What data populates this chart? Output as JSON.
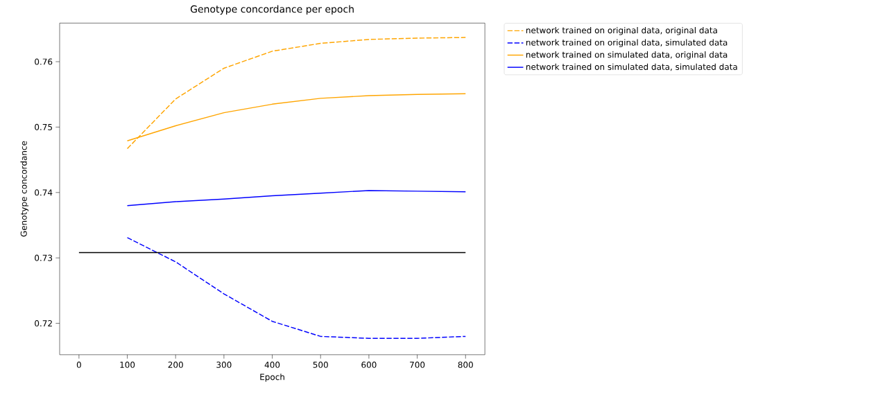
{
  "chart_data": {
    "type": "line",
    "title": "Genotype concordance per epoch",
    "xlabel": "Epoch",
    "ylabel": "Genotype concordance",
    "x": [
      100,
      200,
      300,
      400,
      500,
      600,
      700,
      800
    ],
    "series": [
      {
        "name": "network trained on original data, original data",
        "color": "#ffa500",
        "line_style": "dashed",
        "values": [
          0.7467,
          0.7543,
          0.759,
          0.7616,
          0.7628,
          0.7634,
          0.7636,
          0.7637
        ]
      },
      {
        "name": "network trained on original data, simulated data",
        "color": "#0000ff",
        "line_style": "dashed",
        "values": [
          0.7331,
          0.7294,
          0.7245,
          0.7203,
          0.718,
          0.7177,
          0.7177,
          0.718
        ]
      },
      {
        "name": "network trained on simulated data, original data",
        "color": "#ffa500",
        "line_style": "solid",
        "values": [
          0.7479,
          0.7502,
          0.7522,
          0.7535,
          0.7544,
          0.7548,
          0.755,
          0.7551
        ]
      },
      {
        "name": "network trained on simulated data, simulated data",
        "color": "#0000ff",
        "line_style": "solid",
        "values": [
          0.738,
          0.7386,
          0.739,
          0.7395,
          0.7399,
          0.7403,
          0.7402,
          0.7401
        ]
      },
      {
        "color": "#000000",
        "line_style": "solid",
        "x": [
          0,
          800
        ],
        "values": [
          0.7308,
          0.7308
        ]
      }
    ],
    "xlim": [
      -40,
      840
    ],
    "ylim": [
      0.7152,
      0.7659
    ],
    "xticks": [
      0,
      100,
      200,
      300,
      400,
      500,
      600,
      700,
      800
    ],
    "yticks": [
      0.72,
      0.73,
      0.74,
      0.75,
      0.76
    ],
    "legend": "top right",
    "grid": false
  }
}
